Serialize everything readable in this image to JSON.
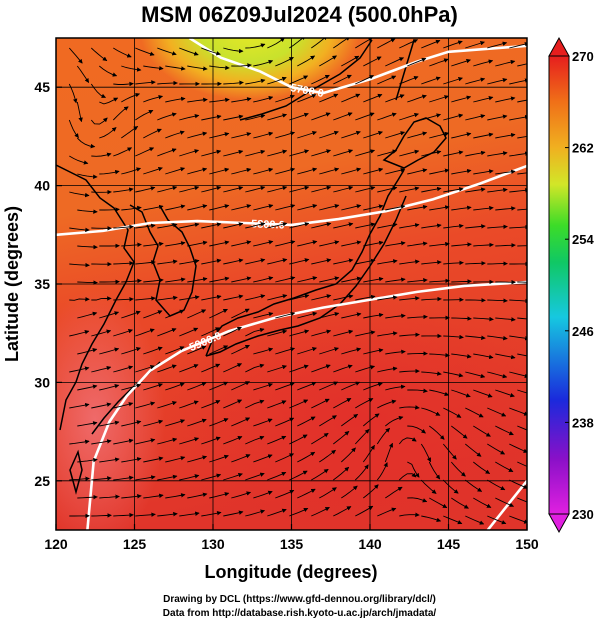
{
  "title": "MSM 06Z09Jul2024 (500.0hPa)",
  "xlabel": "Longitude (degrees)",
  "ylabel": "Latitude  (degrees)",
  "credits": {
    "line1": "Drawing by DCL (https://www.gfd-dennou.org/library/dcl/)",
    "line2": "Data from http://database.rish.kyoto-u.ac.jp/arch/jmadata/"
  },
  "chart_data": {
    "type": "heatmap",
    "x_range": [
      120,
      150
    ],
    "y_range": [
      22.5,
      47.5
    ],
    "x_ticks": [
      {
        "value": 120,
        "label": "120"
      },
      {
        "value": 125,
        "label": "125"
      },
      {
        "value": 130,
        "label": "130"
      },
      {
        "value": 135,
        "label": "135"
      },
      {
        "value": 140,
        "label": "140"
      },
      {
        "value": 145,
        "label": "145"
      },
      {
        "value": 150,
        "label": "150"
      }
    ],
    "y_ticks": [
      {
        "value": 25,
        "label": "25"
      },
      {
        "value": 30,
        "label": "30"
      },
      {
        "value": 35,
        "label": "35"
      },
      {
        "value": 40,
        "label": "40"
      },
      {
        "value": 45,
        "label": "45"
      }
    ],
    "grid": true,
    "colorbar": {
      "min": 230,
      "max": 270,
      "ticks": [
        {
          "value": 230,
          "label": "230"
        },
        {
          "value": 238,
          "label": "238"
        },
        {
          "value": 246,
          "label": "246"
        },
        {
          "value": 254,
          "label": "254"
        },
        {
          "value": 262,
          "label": "262"
        },
        {
          "value": 270,
          "label": "270"
        }
      ]
    },
    "contours": [
      {
        "label": "5700.0",
        "points": [
          [
            128.5,
            47.5
          ],
          [
            130.5,
            46.5
          ],
          [
            133,
            45.8
          ],
          [
            135,
            45
          ],
          [
            137,
            44.7
          ],
          [
            140,
            45.4
          ],
          [
            143,
            46.3
          ],
          [
            145,
            46.8
          ],
          [
            150,
            47.1
          ]
        ]
      },
      {
        "label": "5800.0",
        "points": [
          [
            120,
            37.5
          ],
          [
            123,
            37.7
          ],
          [
            126,
            38.1
          ],
          [
            129,
            38.2
          ],
          [
            132,
            38.1
          ],
          [
            135,
            38
          ],
          [
            138,
            38.3
          ],
          [
            141,
            38.7
          ],
          [
            144,
            39.3
          ],
          [
            147,
            40.1
          ],
          [
            150,
            41
          ]
        ]
      },
      {
        "label": "5900.0",
        "points": [
          [
            122,
            22.5
          ],
          [
            122.4,
            26
          ],
          [
            123.4,
            28
          ],
          [
            124.5,
            29.3
          ],
          [
            126,
            30.6
          ],
          [
            128,
            31.6
          ],
          [
            131,
            32.6
          ],
          [
            134,
            33.3
          ],
          [
            137,
            33.8
          ],
          [
            140,
            34.2
          ],
          [
            143,
            34.6
          ],
          [
            146,
            34.9
          ],
          [
            150,
            35.1
          ]
        ]
      },
      {
        "label": "",
        "points": [
          [
            147.5,
            22.5
          ],
          [
            149,
            24
          ],
          [
            150,
            25
          ]
        ]
      }
    ],
    "temperature_field": [
      {
        "lon": 132,
        "lat": 47.5,
        "value": 258
      },
      {
        "lon": 130,
        "lat": 42,
        "value": 266
      },
      {
        "lon": 140,
        "lat": 37,
        "value": 268
      },
      {
        "lon": 130,
        "lat": 32,
        "value": 268.5
      },
      {
        "lon": 142,
        "lat": 28,
        "value": 269
      },
      {
        "lon": 122,
        "lat": 27,
        "value": 268.5
      }
    ]
  },
  "colors": {
    "frame": "#000000",
    "contour": "#ffffff",
    "grid": "#000000"
  }
}
